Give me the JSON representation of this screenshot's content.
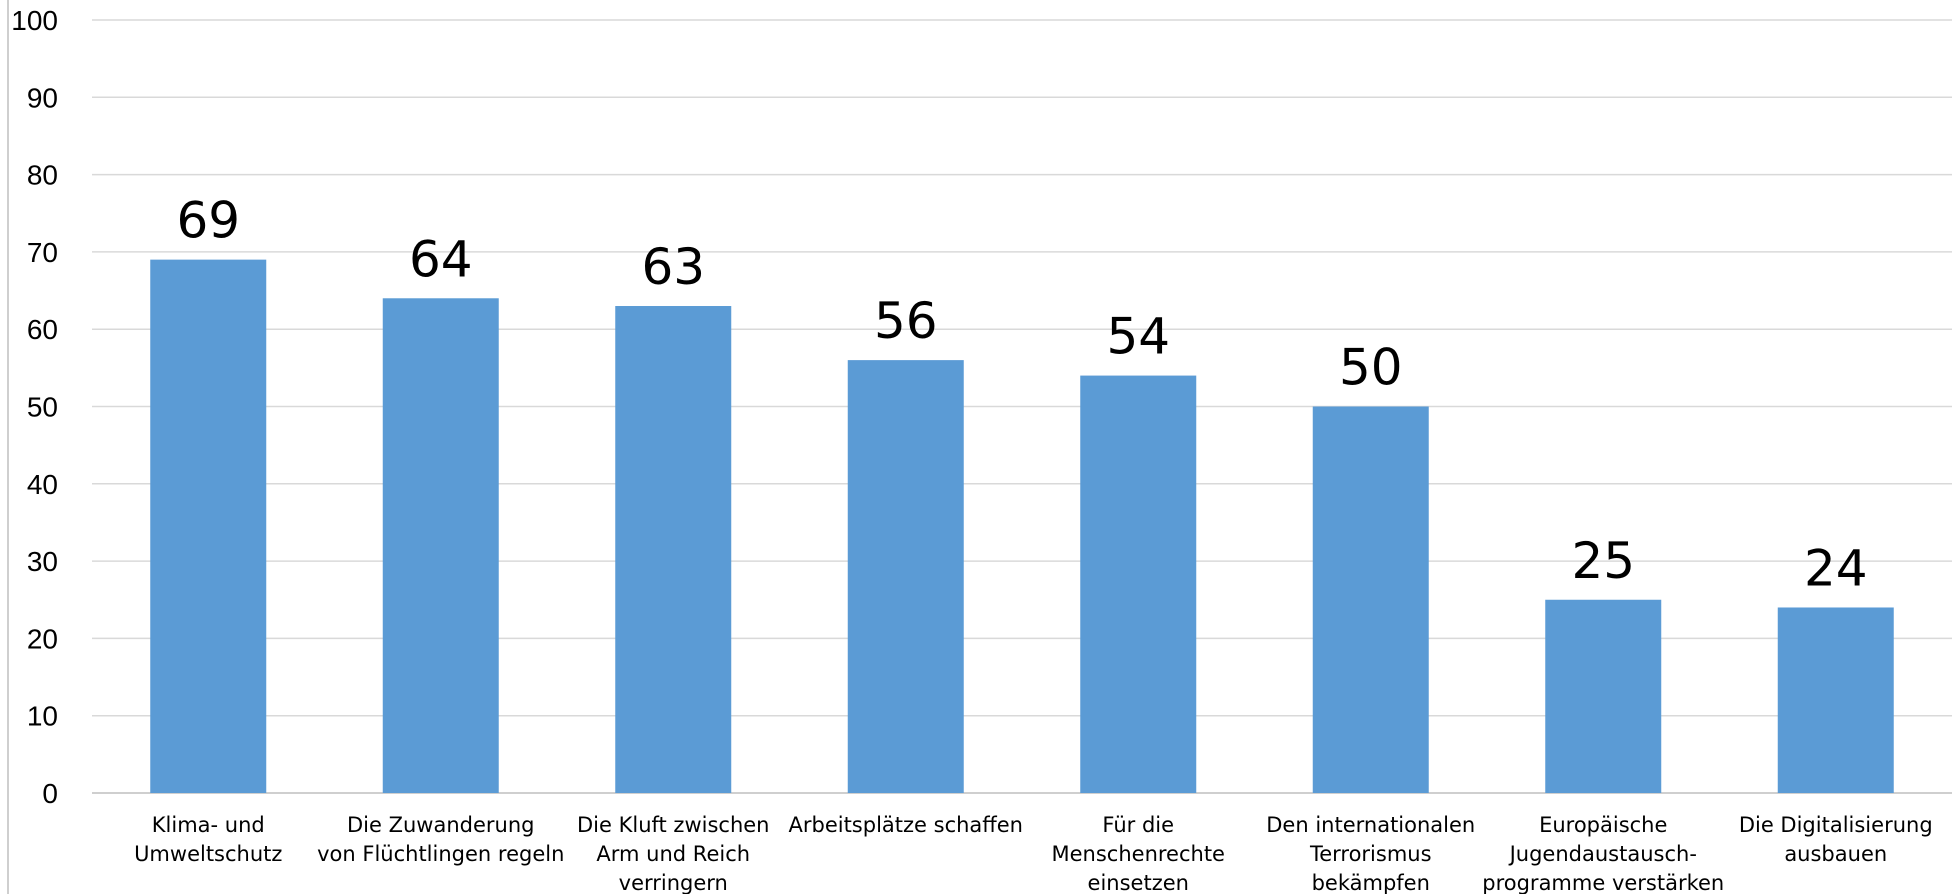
{
  "chart_data": {
    "type": "bar",
    "categories": [
      [
        "Klima- und",
        "Umweltschutz"
      ],
      [
        "Die Zuwanderung",
        "von Flüchtlingen regeln"
      ],
      [
        "Die Kluft zwischen",
        "Arm und Reich",
        "verringern"
      ],
      [
        "Arbeitsplätze schaffen"
      ],
      [
        "Für die",
        "Menschenrechte",
        "einsetzen"
      ],
      [
        "Den internationalen",
        "Terrorismus",
        "bekämpfen"
      ],
      [
        "Europäische",
        "Jugendaustausch-",
        "programme verstärken"
      ],
      [
        "Die Digitalisierung",
        "ausbauen"
      ]
    ],
    "values": [
      69,
      64,
      63,
      56,
      54,
      50,
      25,
      24
    ],
    "ylim": [
      0,
      100
    ],
    "yticks": [
      0,
      10,
      20,
      30,
      40,
      50,
      60,
      70,
      80,
      90,
      100
    ],
    "grid": true,
    "legend": "none",
    "title": "",
    "xlabel": "",
    "ylabel": "",
    "colors": {
      "bar": "#5B9BD5",
      "grid": "#D9D9D9",
      "axis": "#BFBFBF",
      "text": "#000000"
    }
  }
}
